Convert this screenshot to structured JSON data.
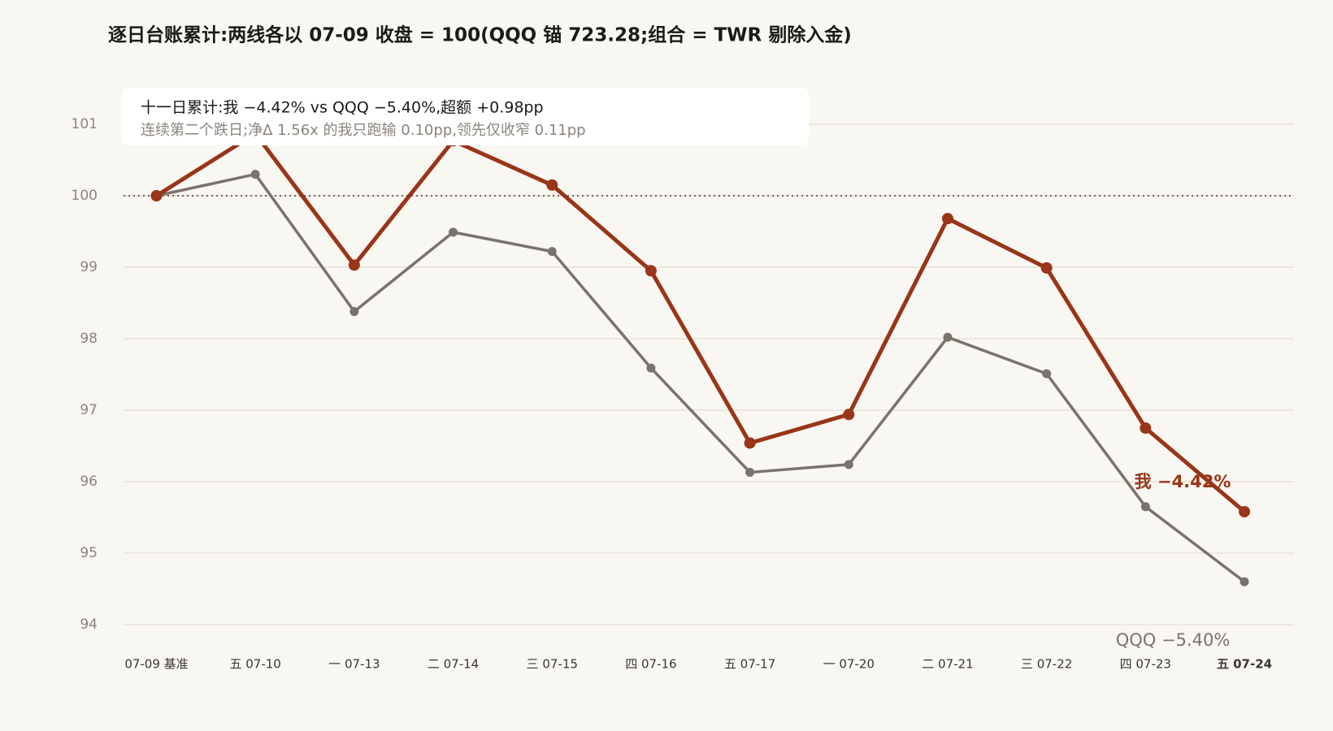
{
  "chart_data": {
    "type": "line",
    "title": "逐日台账累计:两线各以 07-09 收盘 = 100(QQQ 锚 723.28;组合 = TWR 剔除入金)",
    "annotation": {
      "title": "十一日累计:我 −4.42% vs QQQ −5.40%,超额 +0.98pp",
      "subtitle": "连续第二个跌日;净Δ 1.56x 的我只跑输 0.10pp,领先仅收窄 0.11pp"
    },
    "categories": [
      "07-09 基准",
      "五 07-10",
      "一 07-13",
      "二 07-14",
      "三 07-15",
      "四 07-16",
      "五 07-17",
      "一 07-20",
      "二 07-21",
      "三 07-22",
      "四 07-23",
      "五 07-24"
    ],
    "series": [
      {
        "label": "我 −4.42%",
        "color": "#993518",
        "values": [
          100,
          100.87,
          99.03,
          100.77,
          100.15,
          98.95,
          96.54,
          96.94,
          99.68,
          98.99,
          96.75,
          95.58
        ]
      },
      {
        "label": "QQQ −5.40%",
        "color": "#7a726c",
        "values": [
          100,
          100.3,
          98.38,
          99.49,
          99.22,
          97.59,
          96.13,
          96.24,
          98.02,
          97.51,
          95.65,
          94.6
        ]
      }
    ],
    "baseline": 100,
    "ylim": [
      94,
      101.2
    ],
    "yticks": [
      94,
      95,
      96,
      97,
      98,
      99,
      100,
      101
    ],
    "grid": true
  }
}
